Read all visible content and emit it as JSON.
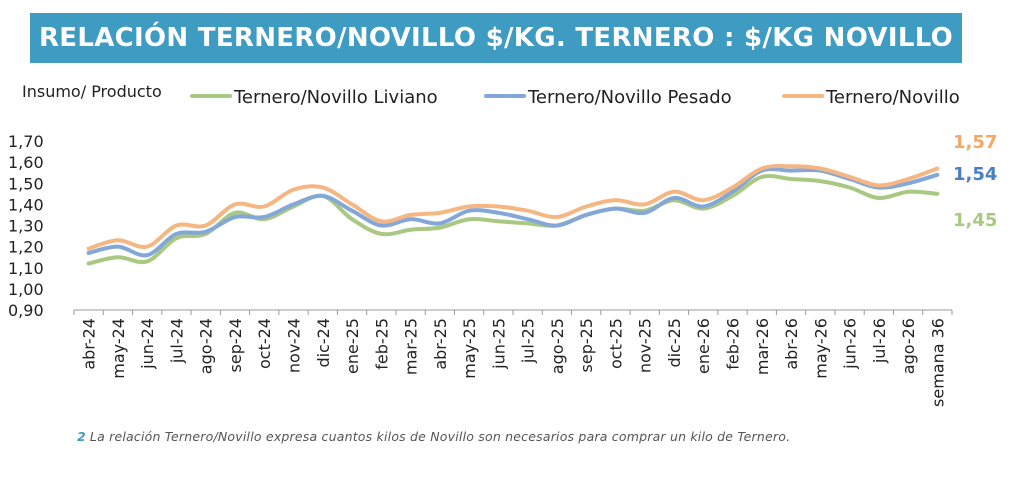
{
  "header": {
    "title": "RELACIÓN TERNERO/NOVILLO $/KG. TERNERO : $/KG NOVILLO"
  },
  "footnote": {
    "number": "2",
    "text": "La relación Ternero/Novillo expresa cuantos kilos de Novillo son necesarios para comprar un kilo de Ternero."
  },
  "chart_data": {
    "type": "line",
    "title": "RELACIÓN TERNERO/NOVILLO $/KG. TERNERO : $/KG NOVILLO",
    "ylabel": "Insumo/ Producto",
    "xlabel": "",
    "ylim": [
      0.9,
      1.7
    ],
    "yticks": [
      "1,70",
      "1,60",
      "1,50",
      "1,40",
      "1,30",
      "1,20",
      "1,10",
      "1,00",
      "0,90"
    ],
    "grid": false,
    "legend_position": "top",
    "categories": [
      "abr-24",
      "may-24",
      "jun-24",
      "jul-24",
      "ago-24",
      "sep-24",
      "oct-24",
      "nov-24",
      "dic-24",
      "ene-25",
      "feb-25",
      "mar-25",
      "abr-25",
      "may-25",
      "jun-25",
      "jul-25",
      "ago-25",
      "sep-25",
      "oct-25",
      "nov-25",
      "dic-25",
      "ene-26",
      "feb-26",
      "mar-26",
      "abr-26",
      "may-26",
      "jun-26",
      "jul-26",
      "ago-26",
      "semana 36"
    ],
    "series": [
      {
        "name": "Ternero/Novillo Liviano",
        "color": "#a9c983",
        "end_label": "1,45",
        "values": [
          1.12,
          1.15,
          1.13,
          1.24,
          1.26,
          1.36,
          1.33,
          1.39,
          1.44,
          1.33,
          1.26,
          1.28,
          1.29,
          1.33,
          1.32,
          1.31,
          1.3,
          1.35,
          1.38,
          1.37,
          1.42,
          1.38,
          1.44,
          1.53,
          1.52,
          1.51,
          1.48,
          1.43,
          1.46,
          1.45
        ]
      },
      {
        "name": "Ternero/Novillo Pesado",
        "color": "#82a7d8",
        "end_label": "1,54",
        "values": [
          1.17,
          1.2,
          1.16,
          1.26,
          1.27,
          1.34,
          1.34,
          1.4,
          1.44,
          1.37,
          1.3,
          1.33,
          1.31,
          1.37,
          1.36,
          1.33,
          1.3,
          1.35,
          1.38,
          1.36,
          1.43,
          1.39,
          1.46,
          1.56,
          1.56,
          1.56,
          1.52,
          1.48,
          1.5,
          1.54
        ]
      },
      {
        "name": "Ternero/Novillo",
        "color": "#f6b682",
        "end_label": "1,57",
        "values": [
          1.19,
          1.23,
          1.2,
          1.3,
          1.3,
          1.4,
          1.39,
          1.47,
          1.48,
          1.4,
          1.32,
          1.35,
          1.36,
          1.39,
          1.39,
          1.37,
          1.34,
          1.39,
          1.42,
          1.4,
          1.46,
          1.42,
          1.48,
          1.57,
          1.58,
          1.57,
          1.53,
          1.49,
          1.52,
          1.57
        ]
      }
    ]
  }
}
